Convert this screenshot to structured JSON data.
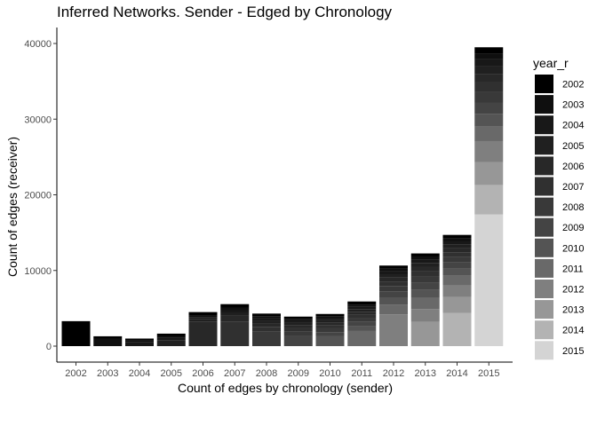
{
  "chart_data": {
    "type": "bar",
    "stacked": true,
    "title": "Inferred Networks. Sender - Edged by Chronology",
    "xlabel": "Count of edges by chronology (sender)",
    "ylabel": "Count of edges (receiver)",
    "categories": [
      "2002",
      "2003",
      "2004",
      "2005",
      "2006",
      "2007",
      "2008",
      "2009",
      "2010",
      "2011",
      "2012",
      "2013",
      "2014",
      "2015"
    ],
    "ylim": [
      0,
      40000
    ],
    "yticks": [
      0,
      10000,
      20000,
      30000,
      40000
    ],
    "ytick_labels": [
      "0",
      "10000",
      "20000",
      "30000",
      "40000"
    ],
    "grid": false,
    "legend": {
      "title": "year_r",
      "position": "right",
      "entries": [
        "2002",
        "2003",
        "2004",
        "2005",
        "2006",
        "2007",
        "2008",
        "2009",
        "2010",
        "2011",
        "2012",
        "2013",
        "2014",
        "2015"
      ],
      "colors": [
        "#000000",
        "#0f0f0f",
        "#181818",
        "#202020",
        "#282828",
        "#303030",
        "#393939",
        "#444444",
        "#545454",
        "#696969",
        "#7f7f7f",
        "#979797",
        "#b3b3b3",
        "#d4d4d4"
      ]
    },
    "series": [
      {
        "name": "2002",
        "values": [
          3300,
          300,
          250,
          300,
          400,
          450,
          350,
          300,
          300,
          400,
          400,
          400,
          400,
          800
        ]
      },
      {
        "name": "2003",
        "values": [
          0,
          1000,
          250,
          250,
          250,
          350,
          300,
          250,
          250,
          300,
          350,
          400,
          400,
          800
        ]
      },
      {
        "name": "2004",
        "values": [
          0,
          0,
          500,
          300,
          250,
          350,
          300,
          250,
          250,
          300,
          400,
          450,
          450,
          900
        ]
      },
      {
        "name": "2005",
        "values": [
          0,
          0,
          0,
          800,
          400,
          400,
          350,
          300,
          300,
          350,
          450,
          500,
          500,
          1000
        ]
      },
      {
        "name": "2006",
        "values": [
          0,
          0,
          0,
          0,
          3200,
          800,
          450,
          400,
          350,
          400,
          500,
          600,
          550,
          1100
        ]
      },
      {
        "name": "2007",
        "values": [
          0,
          0,
          0,
          0,
          0,
          3200,
          650,
          500,
          450,
          450,
          600,
          700,
          650,
          1300
        ]
      },
      {
        "name": "2008",
        "values": [
          0,
          0,
          0,
          0,
          0,
          0,
          1900,
          600,
          500,
          500,
          700,
          800,
          700,
          1400
        ]
      },
      {
        "name": "2009",
        "values": [
          0,
          0,
          0,
          0,
          0,
          0,
          0,
          1300,
          550,
          550,
          800,
          900,
          800,
          1500
        ]
      },
      {
        "name": "2010",
        "values": [
          0,
          0,
          0,
          0,
          0,
          0,
          0,
          0,
          1300,
          650,
          950,
          1100,
          950,
          1700
        ]
      },
      {
        "name": "2011",
        "values": [
          0,
          0,
          0,
          0,
          0,
          0,
          0,
          0,
          0,
          2000,
          1300,
          1500,
          1300,
          1900
        ]
      },
      {
        "name": "2012",
        "values": [
          0,
          0,
          0,
          0,
          0,
          0,
          0,
          0,
          0,
          0,
          4200,
          1700,
          1500,
          2800
        ]
      },
      {
        "name": "2013",
        "values": [
          0,
          0,
          0,
          0,
          0,
          0,
          0,
          0,
          0,
          0,
          0,
          3200,
          2100,
          3000
        ]
      },
      {
        "name": "2014",
        "values": [
          0,
          0,
          0,
          0,
          0,
          0,
          0,
          0,
          0,
          0,
          0,
          0,
          4400,
          3900
        ]
      },
      {
        "name": "2015",
        "values": [
          0,
          0,
          0,
          0,
          0,
          0,
          0,
          0,
          0,
          0,
          0,
          0,
          0,
          17400
        ]
      }
    ]
  }
}
